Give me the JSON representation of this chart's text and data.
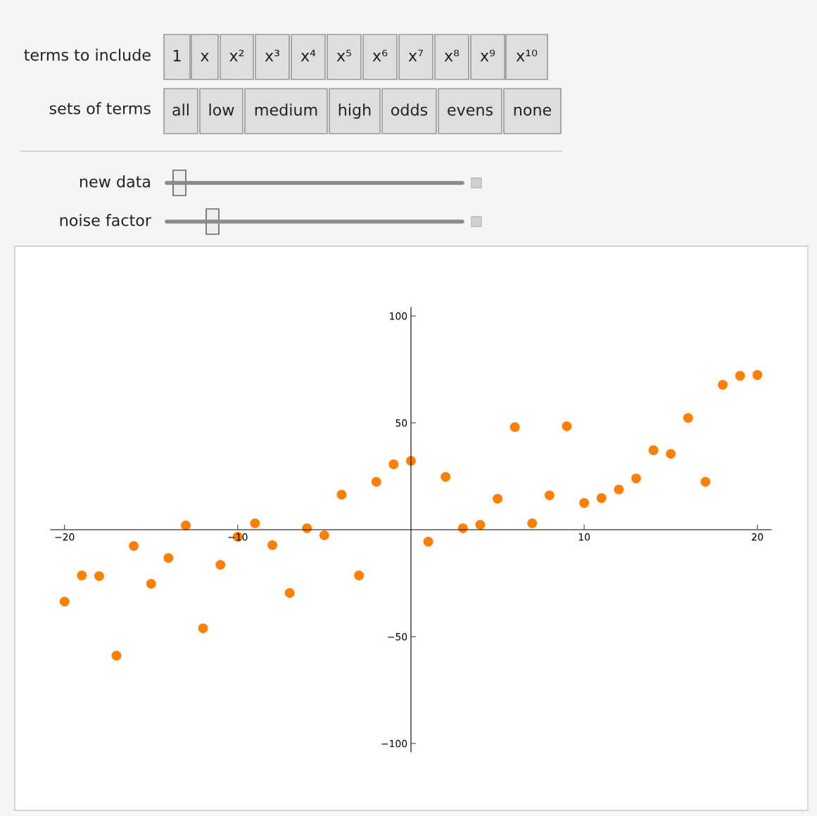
{
  "chart_data": {
    "type": "scatter",
    "x": [
      -20,
      -19,
      -18,
      -17,
      -16,
      -15,
      -14,
      -13,
      -12,
      -11,
      -10,
      -9,
      -8,
      -7,
      -6,
      -5,
      -4,
      -3,
      -2,
      -1,
      0,
      1,
      2,
      3,
      4,
      5,
      6,
      7,
      8,
      9,
      10,
      11,
      12,
      13,
      14,
      15,
      16,
      17,
      18,
      19,
      20
    ],
    "series": [
      {
        "color": "#ff8000",
        "values": [
          -33.6,
          -21.4,
          -21.7,
          -58.9,
          -7.6,
          -25.3,
          -13.2,
          2.0,
          -46.1,
          -16.4,
          -3.3,
          3.0,
          -7.2,
          -29.6,
          0.7,
          -2.6,
          16.4,
          -21.4,
          22.4,
          30.6,
          32.2,
          -5.6,
          24.7,
          0.7,
          2.3,
          14.5,
          48.0,
          3.0,
          16.1,
          48.4,
          12.5,
          14.8,
          18.8,
          24.0,
          37.2,
          35.5,
          52.3,
          22.4,
          67.8,
          72.0,
          72.4
        ]
      }
    ],
    "marker": "circle",
    "xlim": [
      -20.8,
      20.8
    ],
    "ylim": [
      -104,
      104
    ],
    "xticks": [
      {
        "value": -20,
        "label": "−20"
      },
      {
        "value": -10,
        "label": "−10"
      },
      10,
      20
    ],
    "yticks": [
      {
        "value": -100,
        "label": "−100"
      },
      {
        "value": -50,
        "label": "−50"
      },
      50,
      100
    ],
    "grid": false,
    "legend": false,
    "annotations": [
      "terms to include",
      "1",
      "x",
      "x²",
      "x³",
      "x⁴",
      "x⁵",
      "x⁶",
      "x⁷",
      "x⁸",
      "x⁹",
      "x¹⁰",
      "sets of terms",
      "all",
      "low",
      "medium",
      "high",
      "odds",
      "evens",
      "none",
      "new data",
      "noise factor"
    ]
  }
}
